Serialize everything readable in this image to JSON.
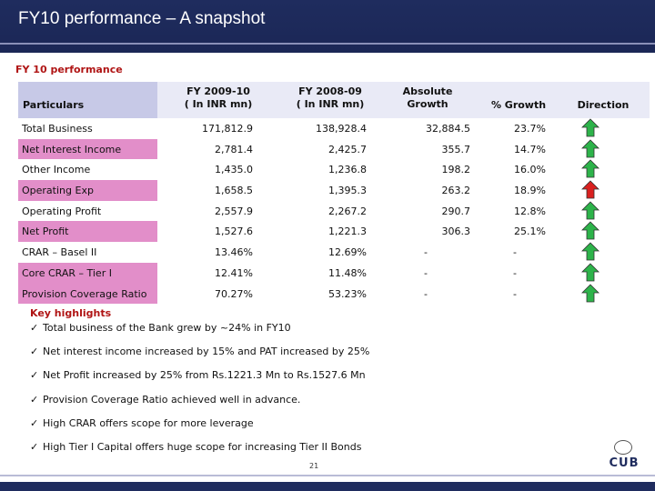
{
  "header": {
    "title": "FY10 performance – A snapshot"
  },
  "section_heading": "FY 10 performance",
  "table": {
    "columns": {
      "particulars": "Particulars",
      "fy2010": "FY 2009-10\n( In INR mn)",
      "fy2009": "FY 2008-09\n( In INR mn)",
      "absolute": "Absolute\nGrowth",
      "pct": "% Growth",
      "direction": "Direction"
    },
    "rows": [
      {
        "label": "Total Business",
        "fy2010": "171,812.9",
        "fy2009": "138,928.4",
        "absolute": "32,884.5",
        "pct": "23.7%",
        "direction": "up"
      },
      {
        "label": "Net Interest Income",
        "fy2010": "2,781.4",
        "fy2009": "2,425.7",
        "absolute": "355.7",
        "pct": "14.7%",
        "direction": "up"
      },
      {
        "label": "Other Income",
        "fy2010": "1,435.0",
        "fy2009": "1,236.8",
        "absolute": "198.2",
        "pct": "16.0%",
        "direction": "up"
      },
      {
        "label": "Operating  Exp",
        "fy2010": "1,658.5",
        "fy2009": "1,395.3",
        "absolute": "263.2",
        "pct": "18.9%",
        "direction": "up-red"
      },
      {
        "label": "Operating Profit",
        "fy2010": "2,557.9",
        "fy2009": "2,267.2",
        "absolute": "290.7",
        "pct": "12.8%",
        "direction": "up"
      },
      {
        "label": "Net Profit",
        "fy2010": "1,527.6",
        "fy2009": "1,221.3",
        "absolute": "306.3",
        "pct": "25.1%",
        "direction": "up"
      },
      {
        "label": "CRAR – Basel II",
        "fy2010": "13.46%",
        "fy2009": "12.69%",
        "absolute": "-",
        "pct": "-",
        "direction": "up"
      },
      {
        "label": "Core CRAR – Tier I",
        "fy2010": "12.41%",
        "fy2009": "11.48%",
        "absolute": "-",
        "pct": "-",
        "direction": "up"
      },
      {
        "label": "Provision Coverage Ratio",
        "fy2010": "70.27%",
        "fy2009": "53.23%",
        "absolute": "-",
        "pct": "-",
        "direction": "up"
      }
    ]
  },
  "highlights": {
    "title": "Key highlights",
    "items": [
      "Total business of the Bank grew by ~24% in FY10",
      "Net interest income increased by 15% and PAT increased by 25%",
      "Net Profit increased by 25% from Rs.1221.3 Mn to Rs.1527.6 Mn",
      "Provision Coverage Ratio achieved well in advance.",
      "High CRAR offers scope for more leverage",
      "High Tier I Capital offers huge scope for increasing Tier II Bonds"
    ]
  },
  "page_number": "21",
  "logo_text": "CUB",
  "colors": {
    "navy": "#1f2c5e",
    "pink": "#e28ec9",
    "lavender": "#c7c9e7",
    "green": "#2db34a",
    "red": "#d9201f",
    "heading_red": "#b01515"
  },
  "icons": {
    "up": "up-arrow-green-icon",
    "up-red": "up-arrow-red-icon",
    "bullet": "checkmark-icon"
  }
}
